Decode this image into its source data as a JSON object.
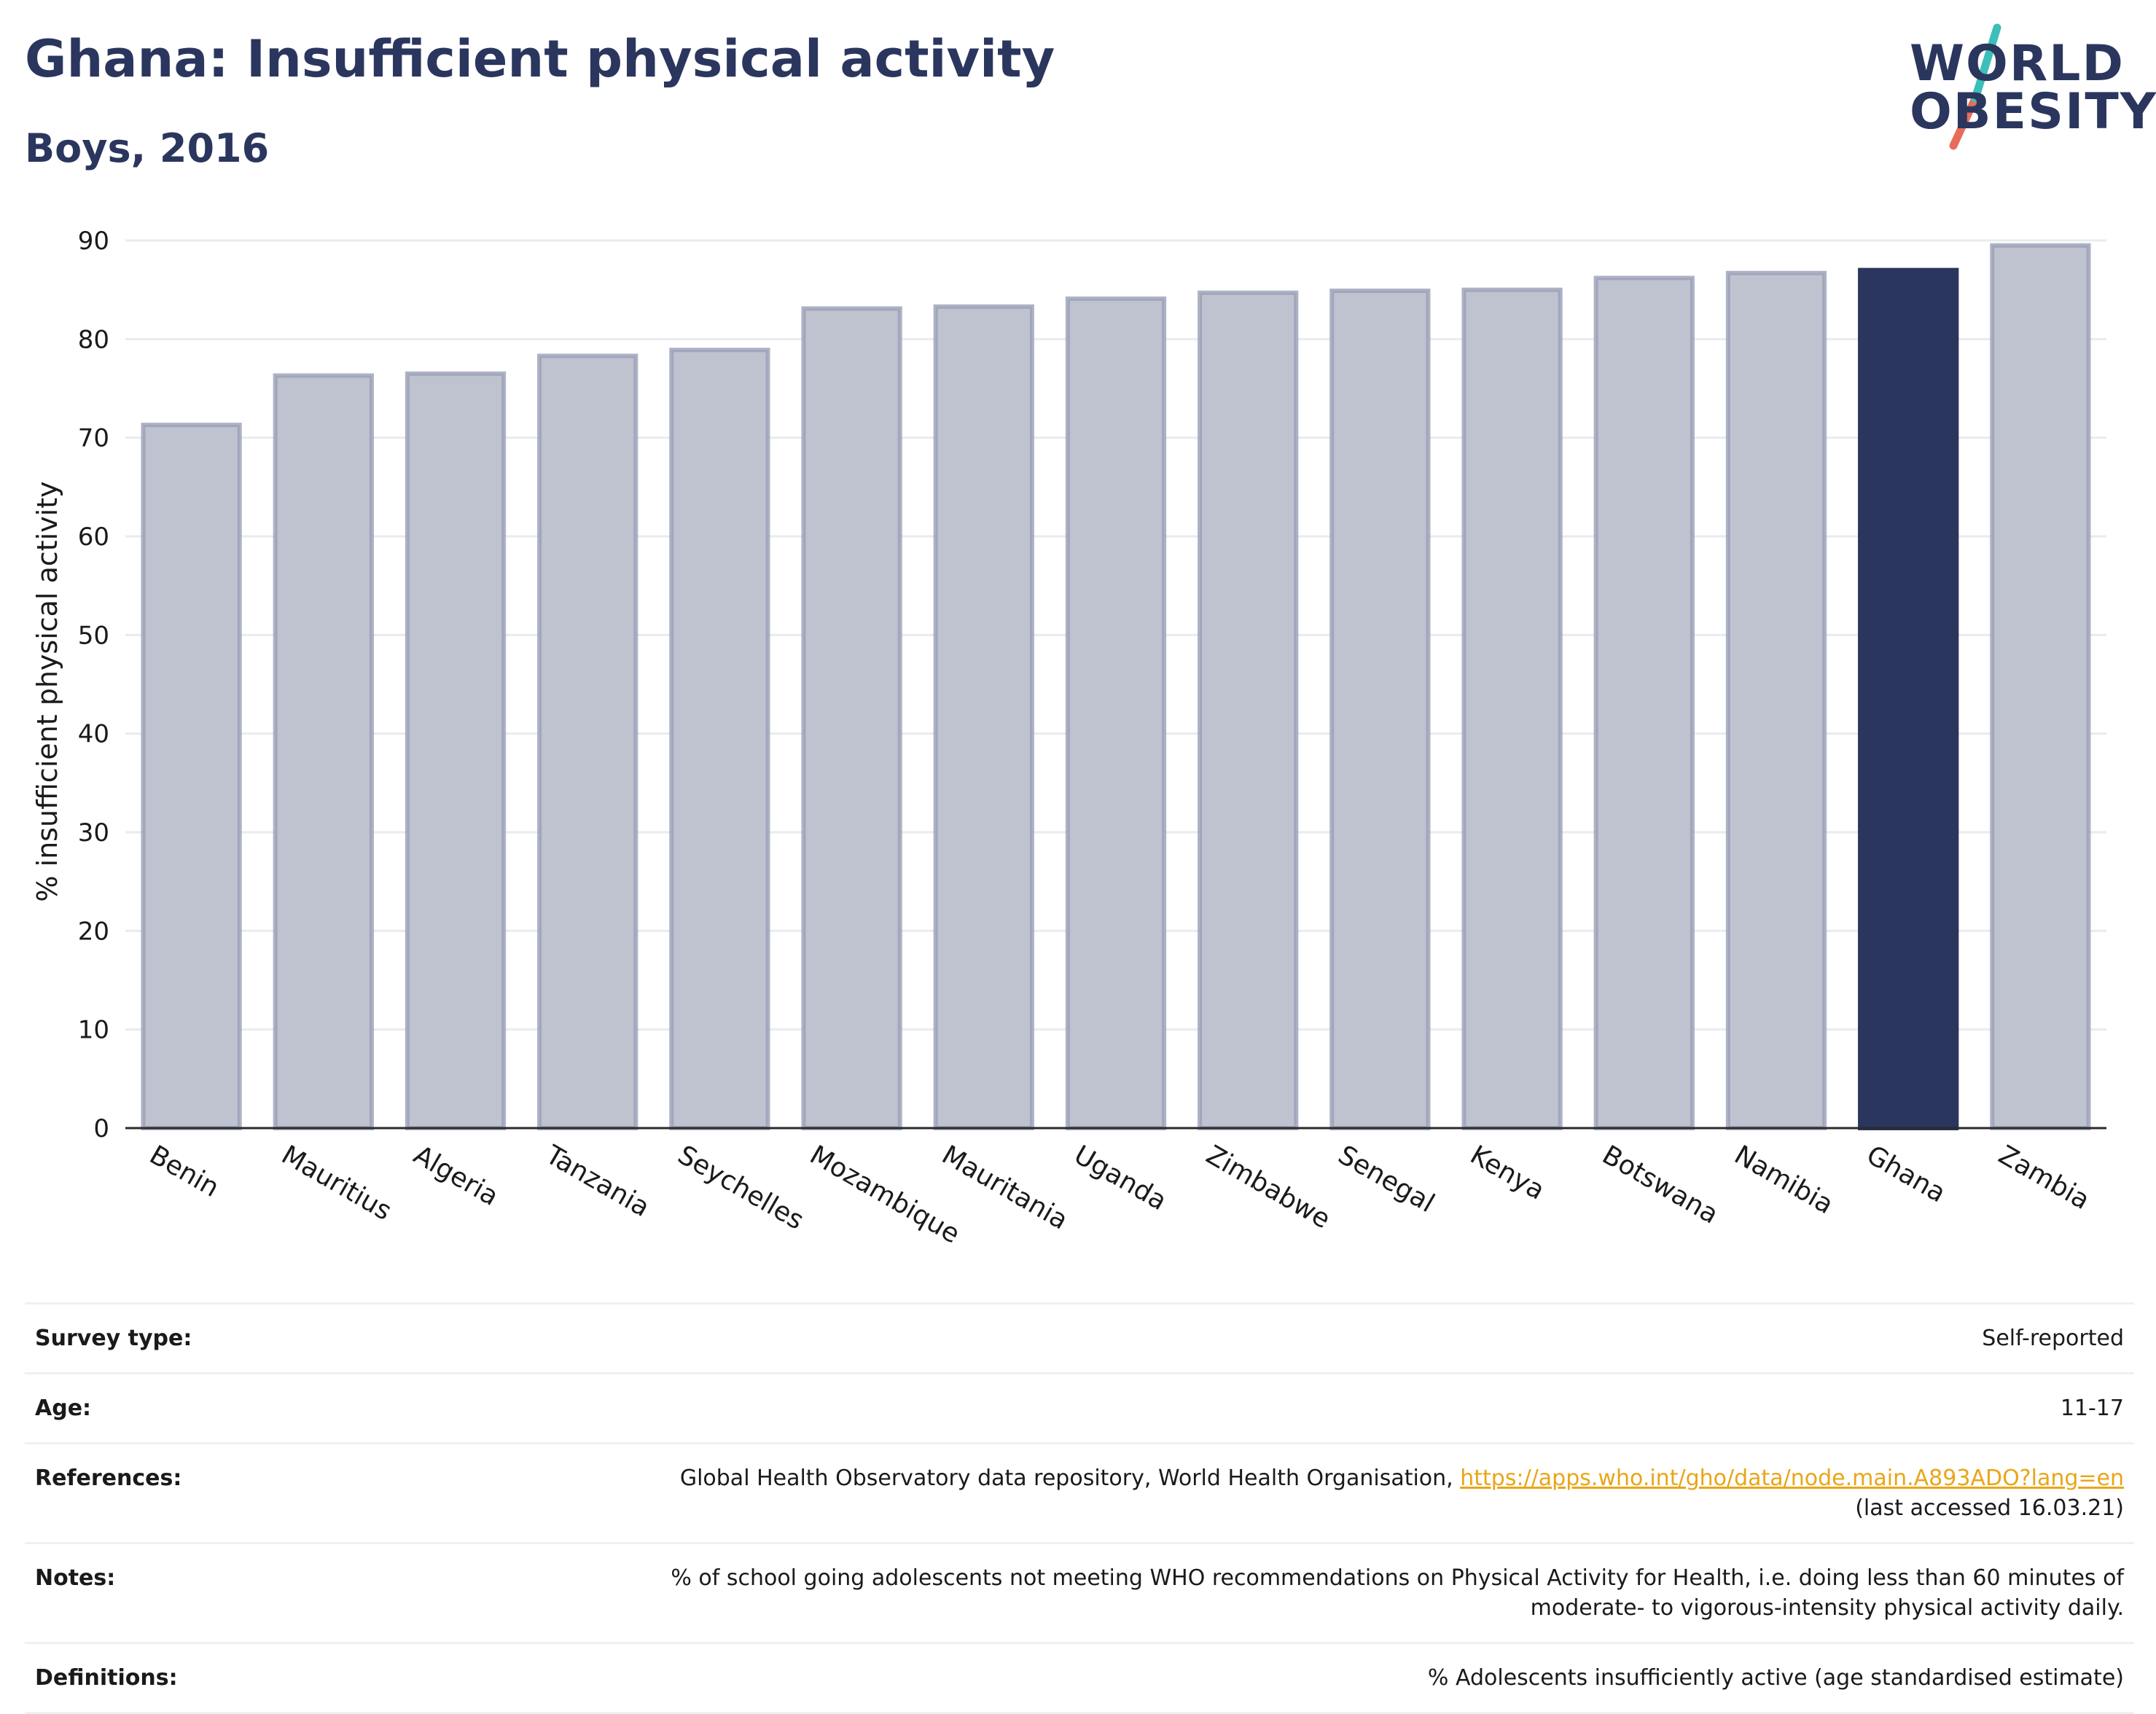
{
  "header": {
    "title": "Ghana: Insufficient physical activity",
    "subtitle": "Boys, 2016"
  },
  "logo": {
    "line1": "WORLD",
    "line2": "OBESITY",
    "colors": {
      "text": "#2b365e",
      "slash_top": "#3bbfb8",
      "slash_bottom": "#e86c5a"
    }
  },
  "chart_data": {
    "type": "bar",
    "ylabel": "% insufficient physical activity",
    "xlabel": "",
    "ylim": [
      0,
      90
    ],
    "yticks": [
      0,
      10,
      20,
      30,
      40,
      50,
      60,
      70,
      80,
      90
    ],
    "grid": true,
    "categories": [
      "Benin",
      "Mauritius",
      "Algeria",
      "Tanzania",
      "Seychelles",
      "Mozambique",
      "Mauritania",
      "Uganda",
      "Zimbabwe",
      "Senegal",
      "Kenya",
      "Botswana",
      "Namibia",
      "Ghana",
      "Zambia"
    ],
    "values": [
      71.3,
      76.3,
      76.5,
      78.3,
      78.9,
      83.1,
      83.3,
      84.1,
      84.7,
      84.9,
      85.0,
      86.2,
      86.7,
      87.0,
      89.5
    ],
    "highlight": "Ghana",
    "colors": {
      "bar": "#bfc2cf",
      "bar_edge": "#9a9fb6",
      "highlight": "#2b365e"
    }
  },
  "meta": [
    {
      "label": "Survey type:",
      "value": "Self-reported"
    },
    {
      "label": "Age:",
      "value": "11-17"
    },
    {
      "label": "References:",
      "value": "Global Health Observatory data repository, World Health Organisation,",
      "link": "https://apps.who.int/gho/data/node.main.A893ADO?lang=en",
      "value2": "(last accessed 16.03.21)"
    },
    {
      "label": "Notes:",
      "value": "% of school going adolescents not meeting WHO recommendations on Physical Activity for Health, i.e. doing less than 60 minutes of moderate- to vigorous-intensity physical activity daily."
    },
    {
      "label": "Definitions:",
      "value": "% Adolescents insufficiently active (age standardised estimate)"
    }
  ]
}
